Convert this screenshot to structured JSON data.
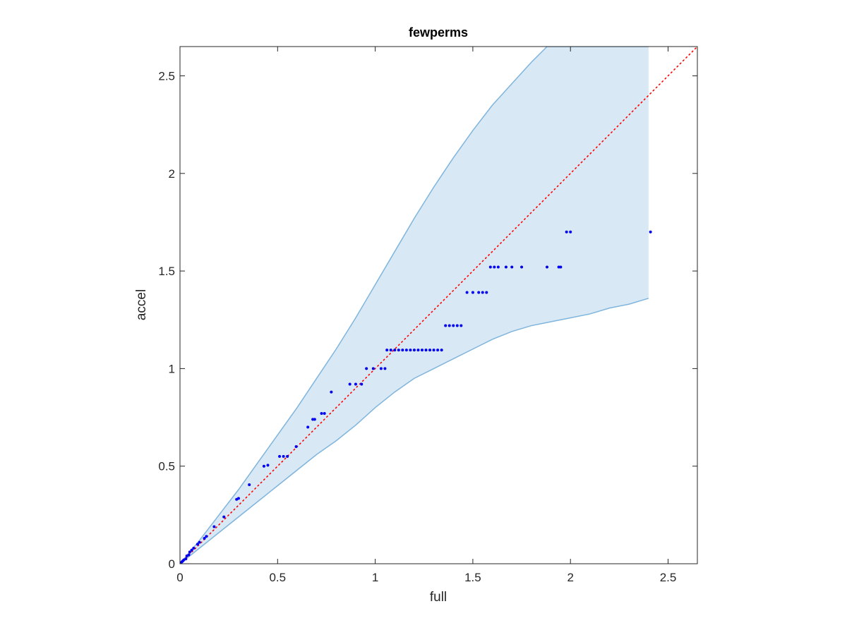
{
  "chart_data": {
    "type": "scatter",
    "title": "fewperms",
    "xlabel": "full",
    "ylabel": "accel",
    "xlim": [
      0,
      2.65
    ],
    "ylim": [
      0,
      2.65
    ],
    "xticks": [
      0,
      0.5,
      1,
      1.5,
      2,
      2.5
    ],
    "yticks": [
      0,
      0.5,
      1,
      1.5,
      2,
      2.5
    ],
    "xtick_labels": [
      "0",
      "0.5",
      "1",
      "1.5",
      "2",
      "2.5"
    ],
    "ytick_labels": [
      "0",
      "0.5",
      "1",
      "1.5",
      "2",
      "2.5"
    ],
    "grid": false,
    "box": true,
    "colors": {
      "points": "#0000ee",
      "band_fill": "#d8e8f4",
      "band_edge": "#7fb5dd",
      "reference_line": "#ff0000",
      "axes": "#262626"
    },
    "reference_line": {
      "style": "dotted",
      "x": [
        0,
        2.65
      ],
      "y": [
        0,
        2.65
      ]
    },
    "band": {
      "x_end": 2.4,
      "upper": [
        [
          0,
          0
        ],
        [
          0.1,
          0.12
        ],
        [
          0.2,
          0.25
        ],
        [
          0.3,
          0.38
        ],
        [
          0.4,
          0.52
        ],
        [
          0.5,
          0.66
        ],
        [
          0.6,
          0.8
        ],
        [
          0.7,
          0.95
        ],
        [
          0.8,
          1.1
        ],
        [
          0.9,
          1.26
        ],
        [
          1.0,
          1.43
        ],
        [
          1.1,
          1.6
        ],
        [
          1.2,
          1.77
        ],
        [
          1.3,
          1.93
        ],
        [
          1.4,
          2.08
        ],
        [
          1.5,
          2.22
        ],
        [
          1.6,
          2.35
        ],
        [
          1.7,
          2.46
        ],
        [
          1.8,
          2.57
        ],
        [
          1.88,
          2.65
        ],
        [
          2.4,
          2.65
        ]
      ],
      "lower": [
        [
          0,
          0
        ],
        [
          0.1,
          0.08
        ],
        [
          0.2,
          0.16
        ],
        [
          0.3,
          0.24
        ],
        [
          0.4,
          0.32
        ],
        [
          0.5,
          0.4
        ],
        [
          0.6,
          0.48
        ],
        [
          0.7,
          0.56
        ],
        [
          0.8,
          0.63
        ],
        [
          0.9,
          0.71
        ],
        [
          1.0,
          0.8
        ],
        [
          1.1,
          0.88
        ],
        [
          1.2,
          0.95
        ],
        [
          1.3,
          1.0
        ],
        [
          1.4,
          1.05
        ],
        [
          1.5,
          1.1
        ],
        [
          1.6,
          1.15
        ],
        [
          1.7,
          1.19
        ],
        [
          1.8,
          1.22
        ],
        [
          1.9,
          1.24
        ],
        [
          2.0,
          1.26
        ],
        [
          2.1,
          1.28
        ],
        [
          2.2,
          1.31
        ],
        [
          2.3,
          1.33
        ],
        [
          2.4,
          1.36
        ]
      ]
    },
    "points": [
      [
        0.005,
        0.005
      ],
      [
        0.01,
        0.01
      ],
      [
        0.015,
        0.015
      ],
      [
        0.02,
        0.02
      ],
      [
        0.03,
        0.025
      ],
      [
        0.035,
        0.04
      ],
      [
        0.045,
        0.045
      ],
      [
        0.05,
        0.06
      ],
      [
        0.06,
        0.07
      ],
      [
        0.07,
        0.08
      ],
      [
        0.09,
        0.1
      ],
      [
        0.1,
        0.11
      ],
      [
        0.125,
        0.13
      ],
      [
        0.135,
        0.14
      ],
      [
        0.175,
        0.19
      ],
      [
        0.225,
        0.24
      ],
      [
        0.29,
        0.33
      ],
      [
        0.3,
        0.335
      ],
      [
        0.355,
        0.405
      ],
      [
        0.43,
        0.5
      ],
      [
        0.45,
        0.505
      ],
      [
        0.51,
        0.55
      ],
      [
        0.53,
        0.55
      ],
      [
        0.55,
        0.55
      ],
      [
        0.595,
        0.6
      ],
      [
        0.655,
        0.7
      ],
      [
        0.68,
        0.74
      ],
      [
        0.69,
        0.74
      ],
      [
        0.725,
        0.77
      ],
      [
        0.74,
        0.77
      ],
      [
        0.775,
        0.88
      ],
      [
        0.87,
        0.92
      ],
      [
        0.9,
        0.92
      ],
      [
        0.93,
        0.92
      ],
      [
        0.955,
        1.0
      ],
      [
        0.99,
        1.0
      ],
      [
        1.03,
        1.0
      ],
      [
        1.05,
        1.0
      ],
      [
        1.06,
        1.095
      ],
      [
        1.08,
        1.095
      ],
      [
        1.1,
        1.095
      ],
      [
        1.12,
        1.095
      ],
      [
        1.14,
        1.095
      ],
      [
        1.16,
        1.095
      ],
      [
        1.18,
        1.095
      ],
      [
        1.2,
        1.095
      ],
      [
        1.22,
        1.095
      ],
      [
        1.24,
        1.095
      ],
      [
        1.26,
        1.095
      ],
      [
        1.28,
        1.095
      ],
      [
        1.3,
        1.095
      ],
      [
        1.32,
        1.095
      ],
      [
        1.34,
        1.095
      ],
      [
        1.36,
        1.22
      ],
      [
        1.38,
        1.22
      ],
      [
        1.4,
        1.22
      ],
      [
        1.42,
        1.22
      ],
      [
        1.44,
        1.22
      ],
      [
        1.47,
        1.39
      ],
      [
        1.5,
        1.39
      ],
      [
        1.53,
        1.39
      ],
      [
        1.55,
        1.39
      ],
      [
        1.57,
        1.39
      ],
      [
        1.59,
        1.52
      ],
      [
        1.61,
        1.52
      ],
      [
        1.63,
        1.52
      ],
      [
        1.67,
        1.52
      ],
      [
        1.7,
        1.52
      ],
      [
        1.75,
        1.52
      ],
      [
        1.88,
        1.52
      ],
      [
        1.94,
        1.52
      ],
      [
        1.95,
        1.52
      ],
      [
        1.98,
        1.7
      ],
      [
        2.0,
        1.7
      ],
      [
        2.41,
        1.7
      ]
    ]
  }
}
